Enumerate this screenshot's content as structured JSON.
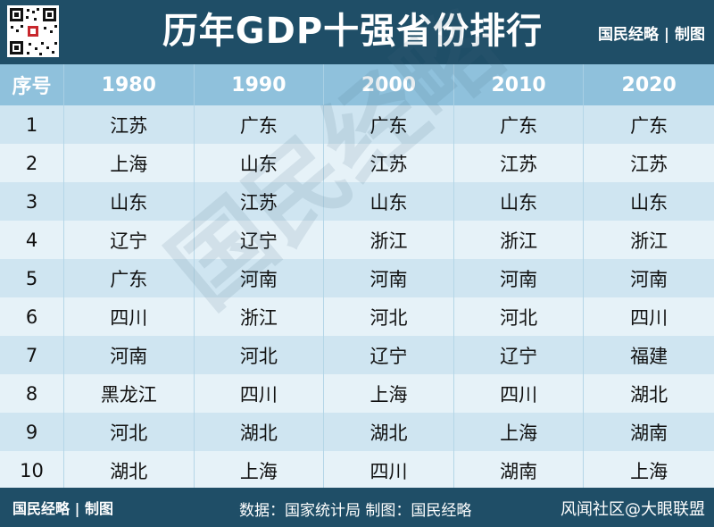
{
  "header": {
    "title": "历年GDP十强省份排行",
    "brand": "国民经略 | 制图"
  },
  "table": {
    "columns": [
      "序号",
      "1980",
      "1990",
      "2000",
      "2010",
      "2020"
    ],
    "rows": [
      [
        "1",
        "江苏",
        "广东",
        "广东",
        "广东",
        "广东"
      ],
      [
        "2",
        "上海",
        "山东",
        "江苏",
        "江苏",
        "江苏"
      ],
      [
        "3",
        "山东",
        "江苏",
        "山东",
        "山东",
        "山东"
      ],
      [
        "4",
        "辽宁",
        "辽宁",
        "浙江",
        "浙江",
        "浙江"
      ],
      [
        "5",
        "广东",
        "河南",
        "河南",
        "河南",
        "河南"
      ],
      [
        "6",
        "四川",
        "浙江",
        "河北",
        "河北",
        "四川"
      ],
      [
        "7",
        "河南",
        "河北",
        "辽宁",
        "辽宁",
        "福建"
      ],
      [
        "8",
        "黑龙江",
        "四川",
        "上海",
        "四川",
        "湖北"
      ],
      [
        "9",
        "河北",
        "湖北",
        "湖北",
        "上海",
        "湖南"
      ],
      [
        "10",
        "湖北",
        "上海",
        "四川",
        "湖南",
        "上海"
      ]
    ]
  },
  "watermark": "国民经略",
  "footer": {
    "brand": "国民经略 | 制图",
    "source": "数据：国家统计局 制图：国民经略",
    "site": "风闻社区@大眼联盟"
  },
  "colors": {
    "background": "#1f4e67",
    "header_row": "#8fc1dc",
    "row_light": "#e6f2f8",
    "row_dark": "#cfe5f1"
  }
}
